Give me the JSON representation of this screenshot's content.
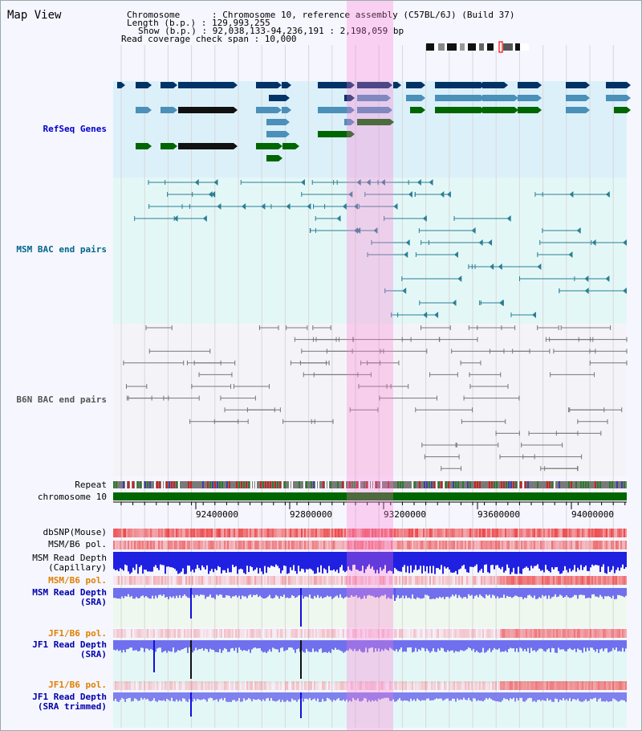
{
  "header": {
    "title": "Map View",
    "chromosome_line": "Chromosome      : Chromosome 10, reference assembly (C57BL/6J) (Build 37)",
    "length_line": "Length (b.p.) : 129,993,255",
    "show_line": "Show (b.p.) : 92,038,133-94,236,191 : 2,198,059 bp",
    "coverage_line": "Read coverage check span : 10,000"
  },
  "tracks": {
    "refseq": "RefSeq Genes",
    "msm_bac": "MSM BAC end pairs",
    "b6n_bac": "B6N BAC end pairs",
    "repeat": "Repeat",
    "chromosome": "chromosome 10",
    "dbsnp": "dbSNP(Mouse)",
    "msm_b6_pol_1": "MSM/B6 pol.",
    "msm_depth_cap_1": "MSM Read Depth",
    "msm_depth_cap_2": "(Capillary)",
    "msm_b6_pol_2": "MSM/B6 pol.",
    "msm_depth_sra_1": "MSM Read Depth",
    "msm_depth_sra_2": "(SRA)",
    "jf1_b6_pol_1": "JF1/B6 pol.",
    "jf1_depth_sra_1": "JF1 Read Depth",
    "jf1_depth_sra_2": "(SRA)",
    "jf1_b6_pol_2": "JF1/B6 pol.",
    "jf1_depth_trim_1": "JF1 Read Depth",
    "jf1_depth_trim_2": "(SRA trimmed)"
  },
  "axis": {
    "ticks": [
      "92400000",
      "92800000",
      "93200000",
      "93600000",
      "94000000"
    ]
  },
  "colors": {
    "refseq_label": "#0000cc",
    "msm_label": "#006688",
    "b6n_label": "#555555",
    "pol_label": "#e08000",
    "depth_label": "#0000aa",
    "gene_dark": "#003366",
    "gene_mid": "#4a90b8",
    "gene_green": "#006600",
    "chromosome_bar": "#006600",
    "highlight": "#ff88d8"
  }
}
